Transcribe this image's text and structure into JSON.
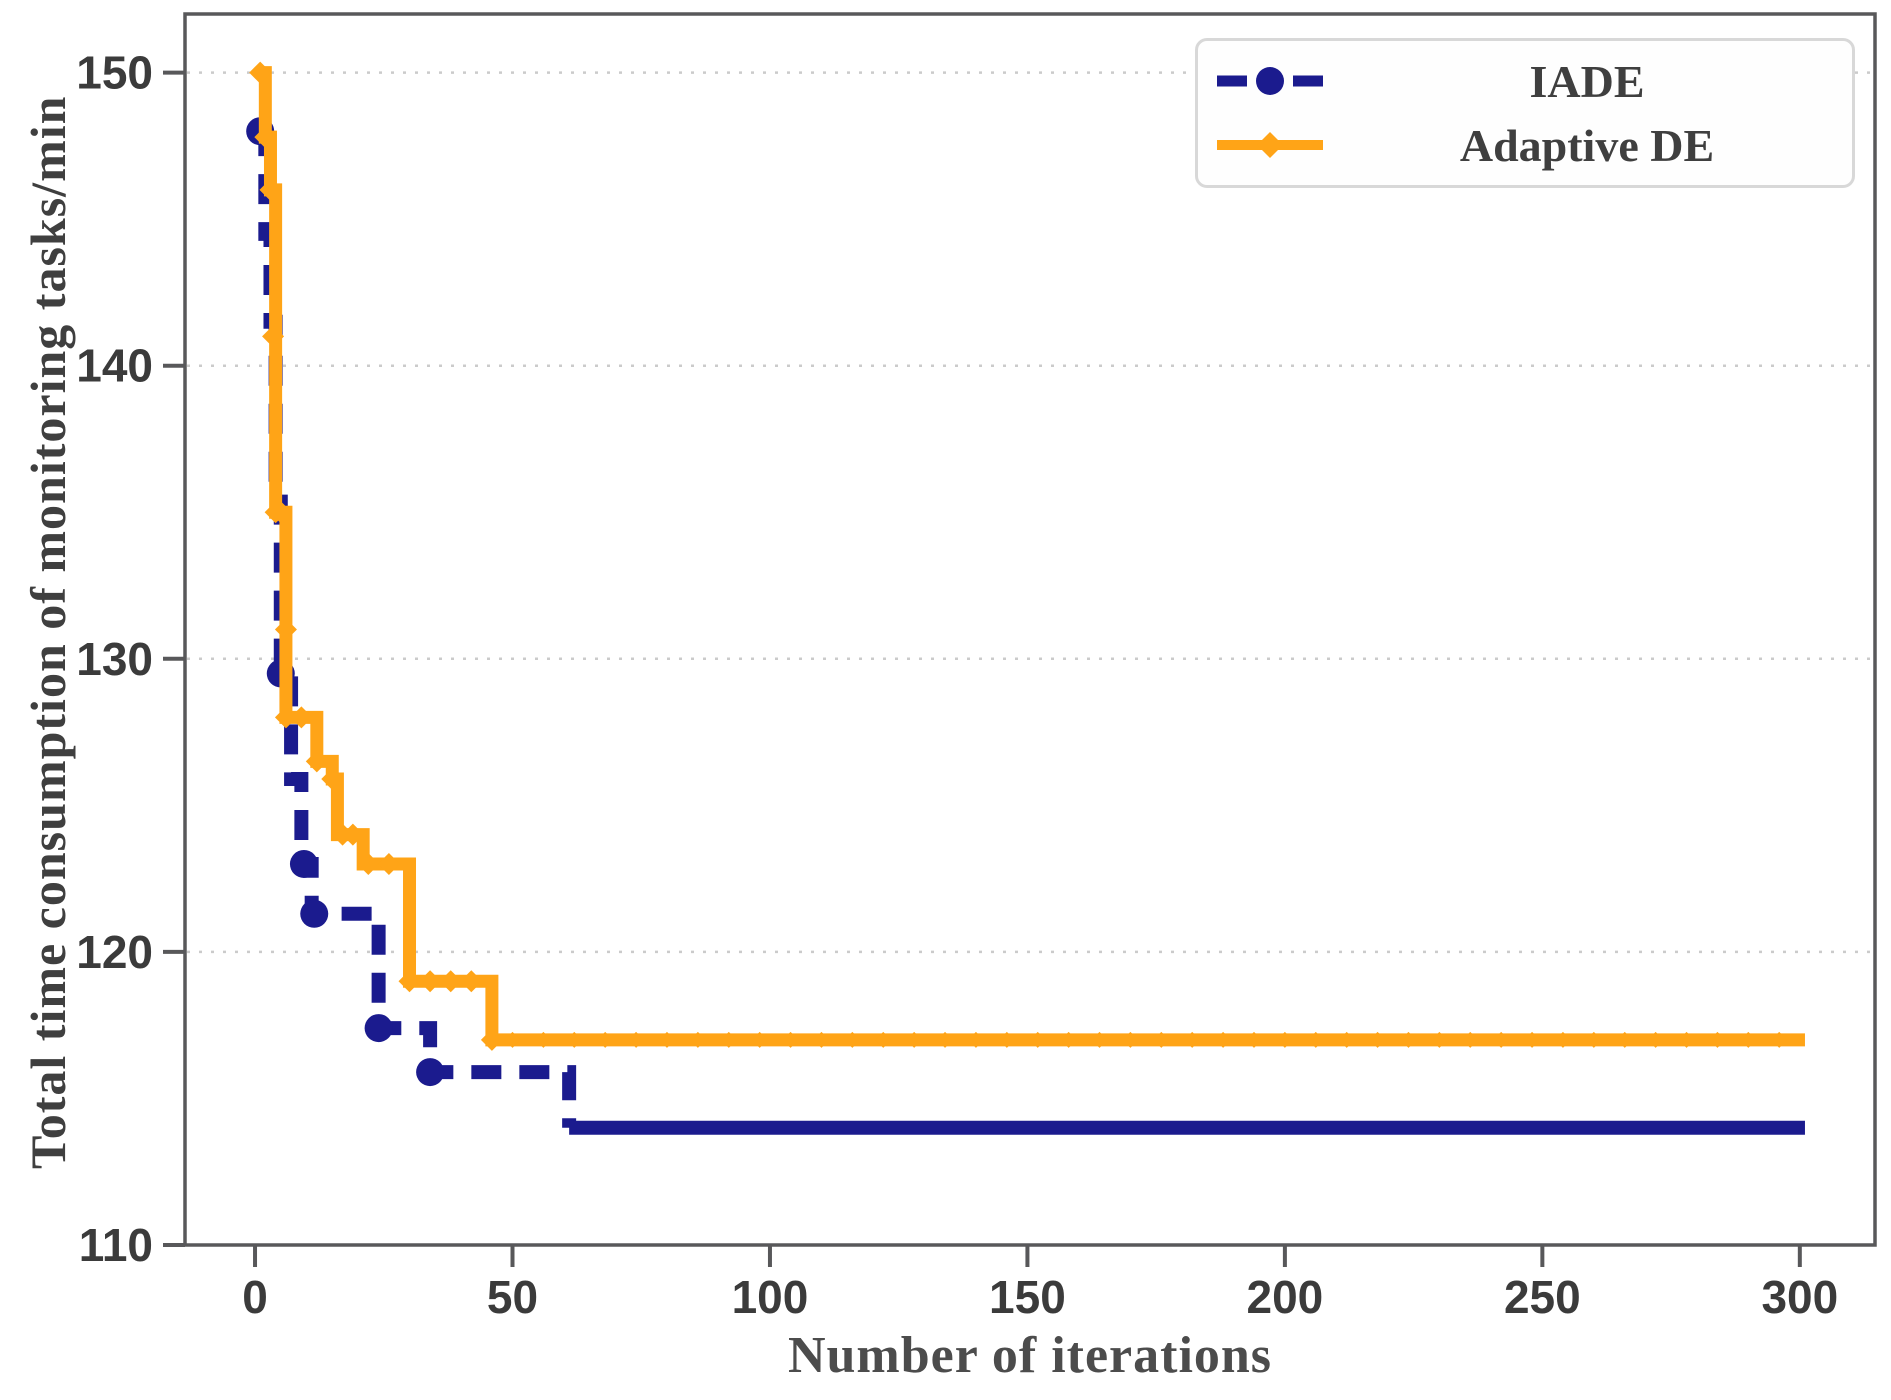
{
  "chart_data": {
    "type": "line",
    "title": "",
    "xlabel": "Number of iterations",
    "ylabel": "Total time consumption of monitoring tasks/min",
    "xlim": [
      -13.6,
      314.6
    ],
    "ylim": [
      110,
      152.0
    ],
    "xticks": [
      0,
      50,
      100,
      150,
      200,
      250,
      300
    ],
    "yticks": [
      110,
      120,
      130,
      140,
      150
    ],
    "grid_y": [
      120,
      130,
      140,
      150
    ],
    "grid_on": true,
    "legend_position": "top-right",
    "axis_color": "#58585a",
    "grid_color": "#cbcbcb",
    "tick_label_color": "#3b3b3b",
    "series": [
      {
        "name": "IADE",
        "color": "#1b1b8e",
        "line_style": "dashed",
        "dash": [
          30,
          18
        ],
        "marker": "circle",
        "step_points": [
          [
            1,
            148
          ],
          [
            2,
            144.5
          ],
          [
            3,
            141.5
          ],
          [
            4,
            136
          ],
          [
            5,
            129.5
          ],
          [
            7,
            125.9
          ],
          [
            9,
            123
          ],
          [
            11,
            121.3
          ],
          [
            24,
            117.4
          ],
          [
            34,
            115.9
          ],
          [
            61,
            114
          ],
          [
            301,
            114
          ]
        ],
        "markers": [
          [
            1,
            148
          ],
          [
            5,
            129.5
          ],
          [
            9.5,
            123
          ],
          [
            11.5,
            121.3
          ],
          [
            24,
            117.4
          ],
          [
            34,
            115.9
          ]
        ],
        "solid_tail_from_x": 61,
        "final_value": 114
      },
      {
        "name": "Adaptive DE",
        "color": "#ffa417",
        "line_style": "solid",
        "dash": null,
        "marker": "diamond",
        "step_points": [
          [
            1,
            150
          ],
          [
            2,
            147.8
          ],
          [
            3,
            146
          ],
          [
            4,
            135
          ],
          [
            6,
            128
          ],
          [
            12,
            126.5
          ],
          [
            15,
            125.9
          ],
          [
            16,
            124
          ],
          [
            21,
            123
          ],
          [
            30,
            119
          ],
          [
            46,
            117
          ],
          [
            301,
            117
          ]
        ],
        "markers": [
          [
            1,
            150
          ],
          [
            2,
            147.8
          ],
          [
            3,
            146
          ],
          [
            3.5,
            141
          ],
          [
            4,
            135
          ],
          [
            5,
            135
          ],
          [
            6,
            131
          ],
          [
            6,
            128
          ],
          [
            9,
            128
          ],
          [
            12,
            126.5
          ],
          [
            15,
            125.9
          ],
          [
            17,
            124
          ],
          [
            19,
            124
          ],
          [
            22,
            123
          ],
          [
            26,
            123
          ],
          [
            30,
            119
          ],
          [
            34,
            119
          ],
          [
            38,
            119
          ],
          [
            42,
            119
          ],
          [
            46,
            117
          ]
        ],
        "tail_markers_every": 6,
        "final_value": 117
      }
    ]
  }
}
